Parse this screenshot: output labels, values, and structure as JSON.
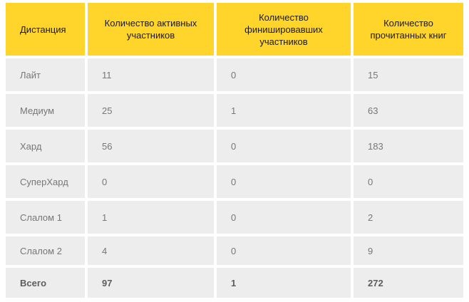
{
  "table": {
    "headers": [
      "Дистанция",
      "Количество активных участников",
      "Количество финишировавших участников",
      "Количество прочитанных книг"
    ],
    "rows": [
      {
        "cells": [
          "Лайт",
          "11",
          "0",
          "15"
        ],
        "bold": false
      },
      {
        "cells": [
          "Медиум",
          "25",
          "1",
          "63"
        ],
        "bold": false
      },
      {
        "cells": [
          "Хард",
          "56",
          "0",
          "183"
        ],
        "bold": false
      },
      {
        "cells": [
          "СуперХард",
          "0",
          "0",
          "0"
        ],
        "bold": false
      },
      {
        "cells": [
          "Слалом 1",
          "1",
          "0",
          "2"
        ],
        "bold": false
      },
      {
        "cells": [
          "Слалом 2",
          "4",
          "0",
          "9"
        ],
        "bold": false
      },
      {
        "cells": [
          "Всего",
          "97",
          "1",
          "272"
        ],
        "bold": true
      }
    ]
  },
  "colors": {
    "header_bg": "#ffd42b",
    "header_text": "#1a1a1a",
    "row_bg": "#ededed",
    "row_text": "#777777",
    "total_text": "#5d5d5d",
    "page_bg": "#ffffff"
  },
  "chart_data": {
    "type": "table",
    "columns": [
      "Дистанция",
      "Количество активных участников",
      "Количество финишировавших участников",
      "Количество прочитанных книг"
    ],
    "rows": [
      [
        "Лайт",
        11,
        0,
        15
      ],
      [
        "Медиум",
        25,
        1,
        63
      ],
      [
        "Хард",
        56,
        0,
        183
      ],
      [
        "СуперХард",
        0,
        0,
        0
      ],
      [
        "Слалом 1",
        1,
        0,
        2
      ],
      [
        "Слалом 2",
        4,
        0,
        9
      ],
      [
        "Всего",
        97,
        1,
        272
      ]
    ],
    "notes": "Всего is the bold totals row; header row has yellow background"
  }
}
